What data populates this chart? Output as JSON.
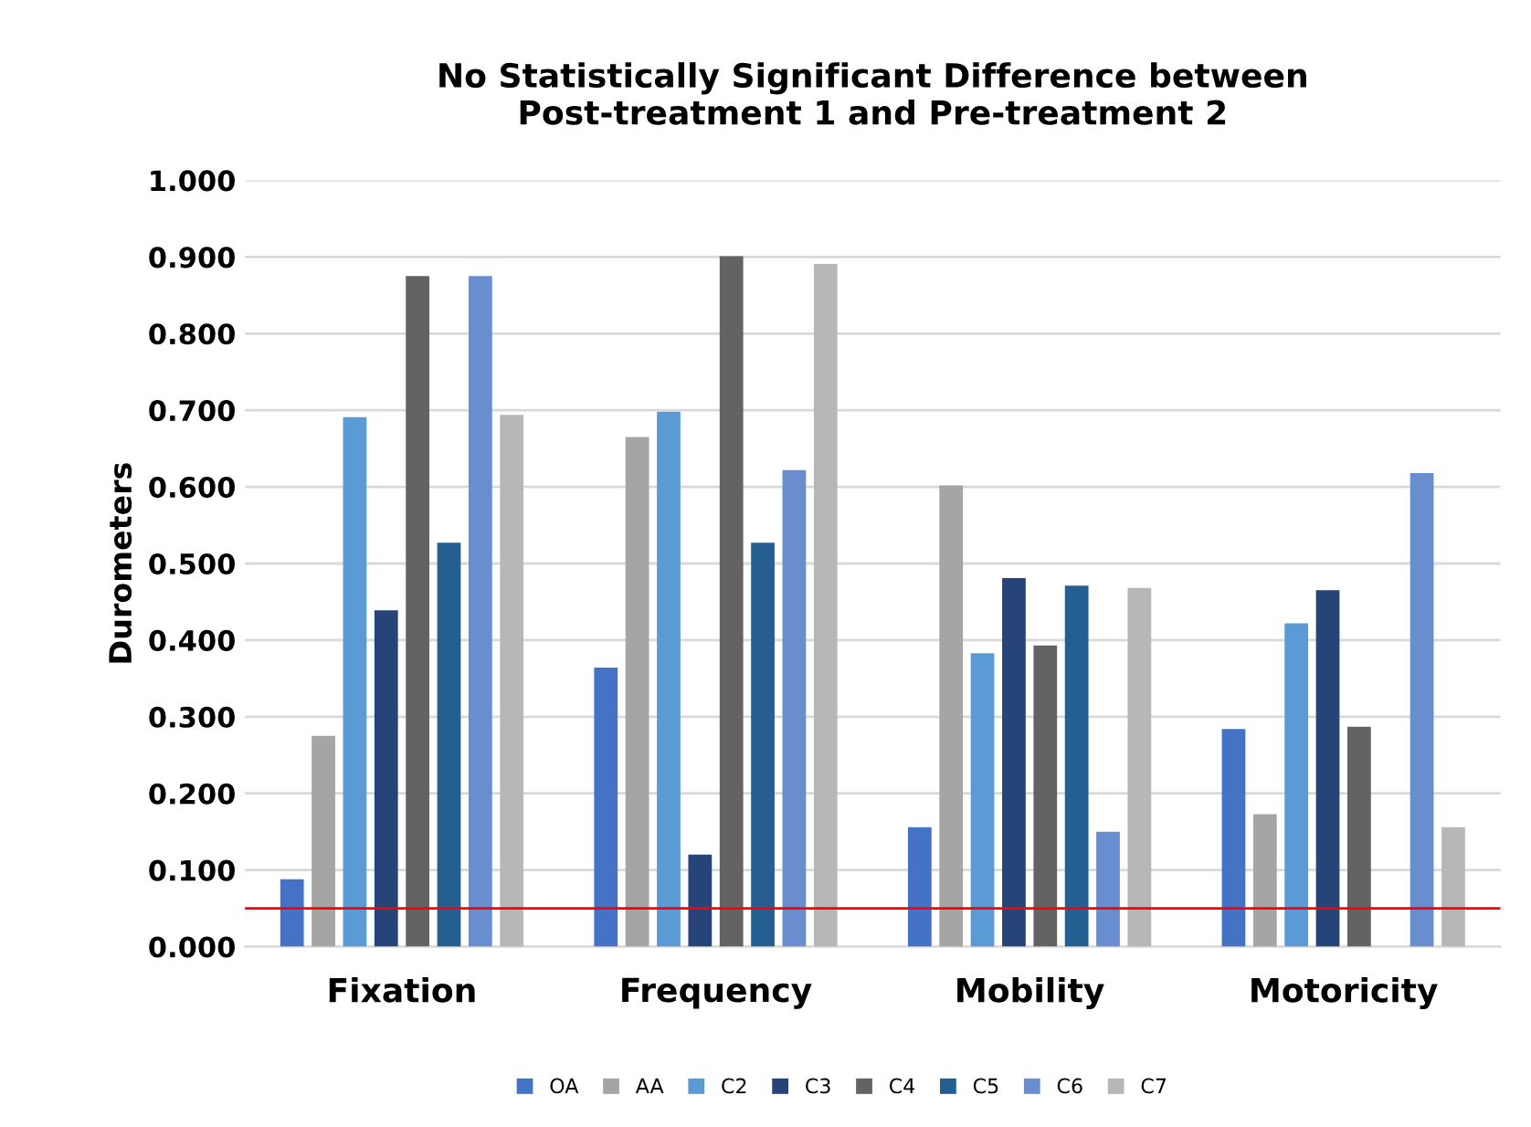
{
  "chart_data": {
    "type": "bar",
    "title": "No Statistically Significant Difference between\nPost-treatment 1 and Pre-treatment 2",
    "ylabel": "Durometers",
    "categories": [
      "Fixation",
      "Frequency",
      "Mobility",
      "Motoricity"
    ],
    "series": [
      {
        "name": "OA",
        "color": "#4472c4",
        "values": [
          0.088,
          0.364,
          0.156,
          0.284
        ]
      },
      {
        "name": "AA",
        "color": "#a5a5a5",
        "values": [
          0.275,
          0.665,
          0.602,
          0.173
        ]
      },
      {
        "name": "C2",
        "color": "#5b9bd5",
        "values": [
          0.691,
          0.698,
          0.383,
          0.422
        ]
      },
      {
        "name": "C3",
        "color": "#264478",
        "values": [
          0.439,
          0.12,
          0.481,
          0.465
        ]
      },
      {
        "name": "C4",
        "color": "#636363",
        "values": [
          0.875,
          0.901,
          0.393,
          0.287
        ]
      },
      {
        "name": "C5",
        "color": "#255e91",
        "values": [
          0.527,
          0.527,
          0.471,
          null
        ]
      },
      {
        "name": "C6",
        "color": "#698ed0",
        "values": [
          0.875,
          0.622,
          0.15,
          0.618
        ]
      },
      {
        "name": "C7",
        "color": "#b7b7b7",
        "values": [
          0.694,
          0.891,
          0.468,
          0.156
        ]
      }
    ],
    "ylim": [
      0,
      1.0
    ],
    "yticks": [
      {
        "value": 0,
        "label": "0.000"
      },
      {
        "value": 0.1,
        "label": "0.100"
      },
      {
        "value": 0.2,
        "label": "0.200"
      },
      {
        "value": 0.3,
        "label": "0.300"
      },
      {
        "value": 0.4,
        "label": "0.400"
      },
      {
        "value": 0.5,
        "label": "0.500"
      },
      {
        "value": 0.6,
        "label": "0.600"
      },
      {
        "value": 0.7,
        "label": "0.700"
      },
      {
        "value": 0.8,
        "label": "0.800"
      },
      {
        "value": 0.9,
        "label": "0.900"
      },
      {
        "value": 1.0,
        "label": "1.000"
      }
    ],
    "ref_lines": [
      {
        "axis": "y",
        "value": 0.05,
        "color": "#ff0000"
      }
    ],
    "grid": "y",
    "legend": "bottom"
  }
}
